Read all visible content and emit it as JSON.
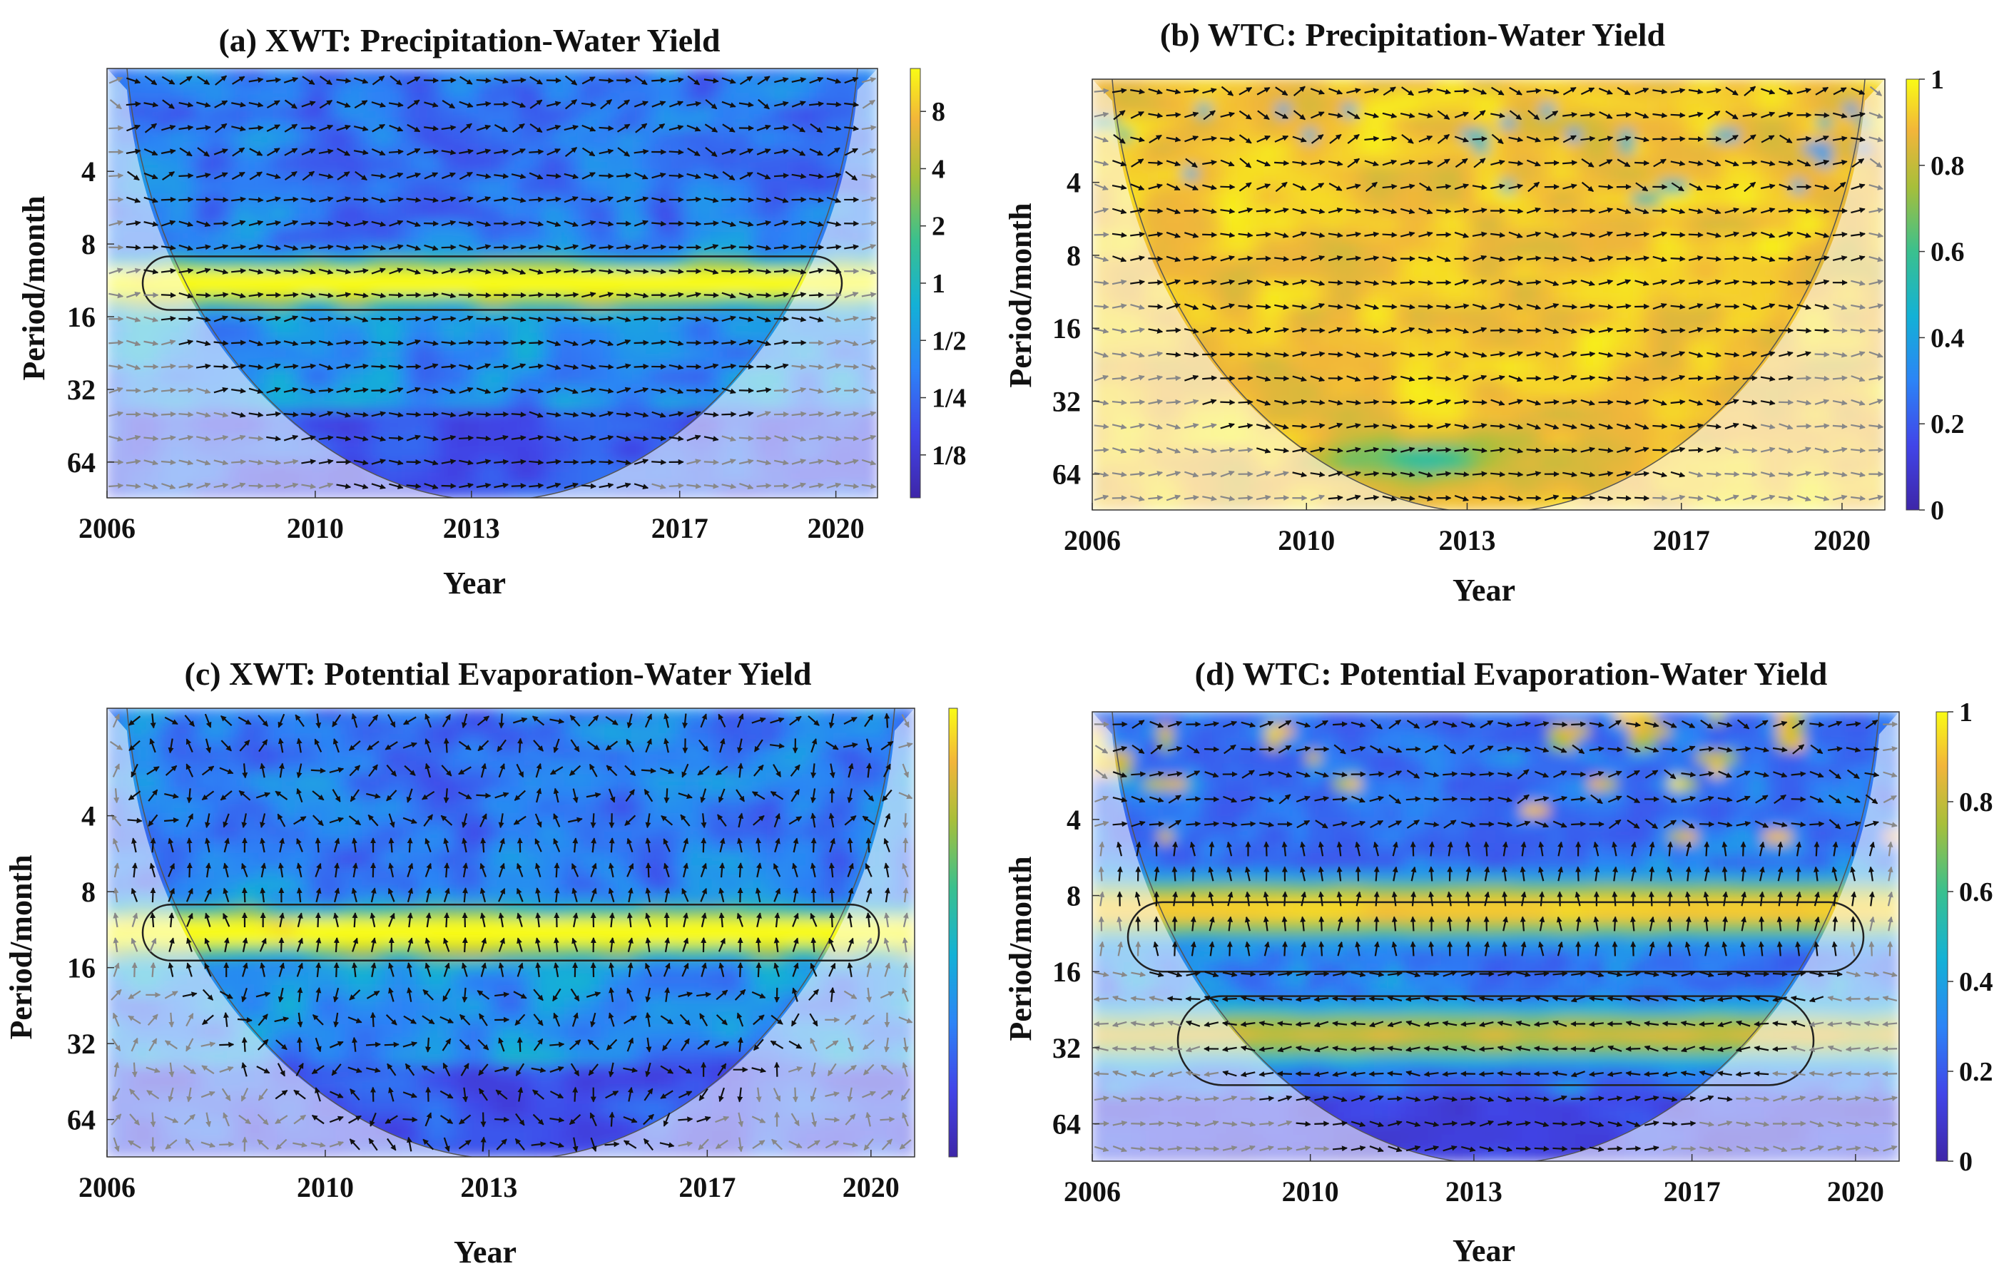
{
  "chart_data": [
    {
      "panel": "a",
      "type": "heatmap",
      "title": "(a) XWT: Precipitation-Water Yield",
      "xlabel": "Year",
      "ylabel": "Period/month",
      "x_ticks": [
        "2006",
        "2010",
        "2013",
        "2017",
        "2020"
      ],
      "y_ticks": [
        "4",
        "8",
        "16",
        "32",
        "64"
      ],
      "colorbar_ticks": [
        "8",
        "4",
        "2",
        "1",
        "1/2",
        "1/4",
        "1/8"
      ],
      "xlim": [
        2006,
        2020.8
      ],
      "ylim_period": [
        1.5,
        90
      ],
      "style": "xwt",
      "high_band_period": [
        9,
        15
      ],
      "arrows": "phase arrows mostly rightward (in-phase)",
      "colors": {
        "low": "#3e26a8",
        "mid": "#13beb8",
        "high": "#f9fb15"
      }
    },
    {
      "panel": "b",
      "type": "heatmap",
      "title": "(b) WTC: Precipitation-Water Yield",
      "xlabel": "Year",
      "ylabel": "Period/month",
      "x_ticks": [
        "2006",
        "2010",
        "2013",
        "2017",
        "2020"
      ],
      "y_ticks": [
        "4",
        "8",
        "16",
        "32",
        "64"
      ],
      "colorbar_ticks": [
        "1",
        "0.8",
        "0.6",
        "0.4",
        "0.2",
        "0"
      ],
      "xlim": [
        2006,
        2020.8
      ],
      "ylim_period": [
        1.5,
        90
      ],
      "style": "wtc_high",
      "arrows": "phase arrows mostly rightward (in-phase)",
      "colors": {
        "low": "#3e26a8",
        "mid": "#13beb8",
        "high": "#f9fb15"
      }
    },
    {
      "panel": "c",
      "type": "heatmap",
      "title": "(c) XWT: Potential Evaporation-Water Yield",
      "xlabel": "Year",
      "ylabel": "Period/month",
      "x_ticks": [
        "2006",
        "2010",
        "2013",
        "2017",
        "2020"
      ],
      "y_ticks": [
        "4",
        "8",
        "16",
        "32",
        "64"
      ],
      "colorbar_ticks": [],
      "xlim": [
        2006,
        2020.8
      ],
      "ylim_period": [
        1.5,
        90
      ],
      "style": "xwt",
      "high_band_period": [
        9,
        15
      ],
      "arrows": "phase arrows mostly upward in the 8-16 month band",
      "colors": {
        "low": "#3e26a8",
        "mid": "#13beb8",
        "high": "#f9fb15"
      }
    },
    {
      "panel": "d",
      "type": "heatmap",
      "title": "(d) WTC: Potential Evaporation-Water Yield",
      "xlabel": "Year",
      "ylabel": "Period/month",
      "x_ticks": [
        "2006",
        "2010",
        "2013",
        "2017",
        "2020"
      ],
      "y_ticks": [
        "4",
        "8",
        "16",
        "32",
        "64"
      ],
      "colorbar_ticks": [
        "1",
        "0.8",
        "0.6",
        "0.4",
        "0.2",
        "0"
      ],
      "xlim": [
        2006,
        2020.8
      ],
      "ylim_period": [
        1.5,
        90
      ],
      "style": "wtc_bands",
      "high_band_period": [
        8.5,
        16
      ],
      "second_band_period": [
        20,
        45
      ],
      "arrows": "phase arrows upward in the 8-16 band, leftward in the 20-45 band",
      "colors": {
        "low": "#3e26a8",
        "mid": "#13beb8",
        "high": "#f9fb15"
      }
    }
  ]
}
